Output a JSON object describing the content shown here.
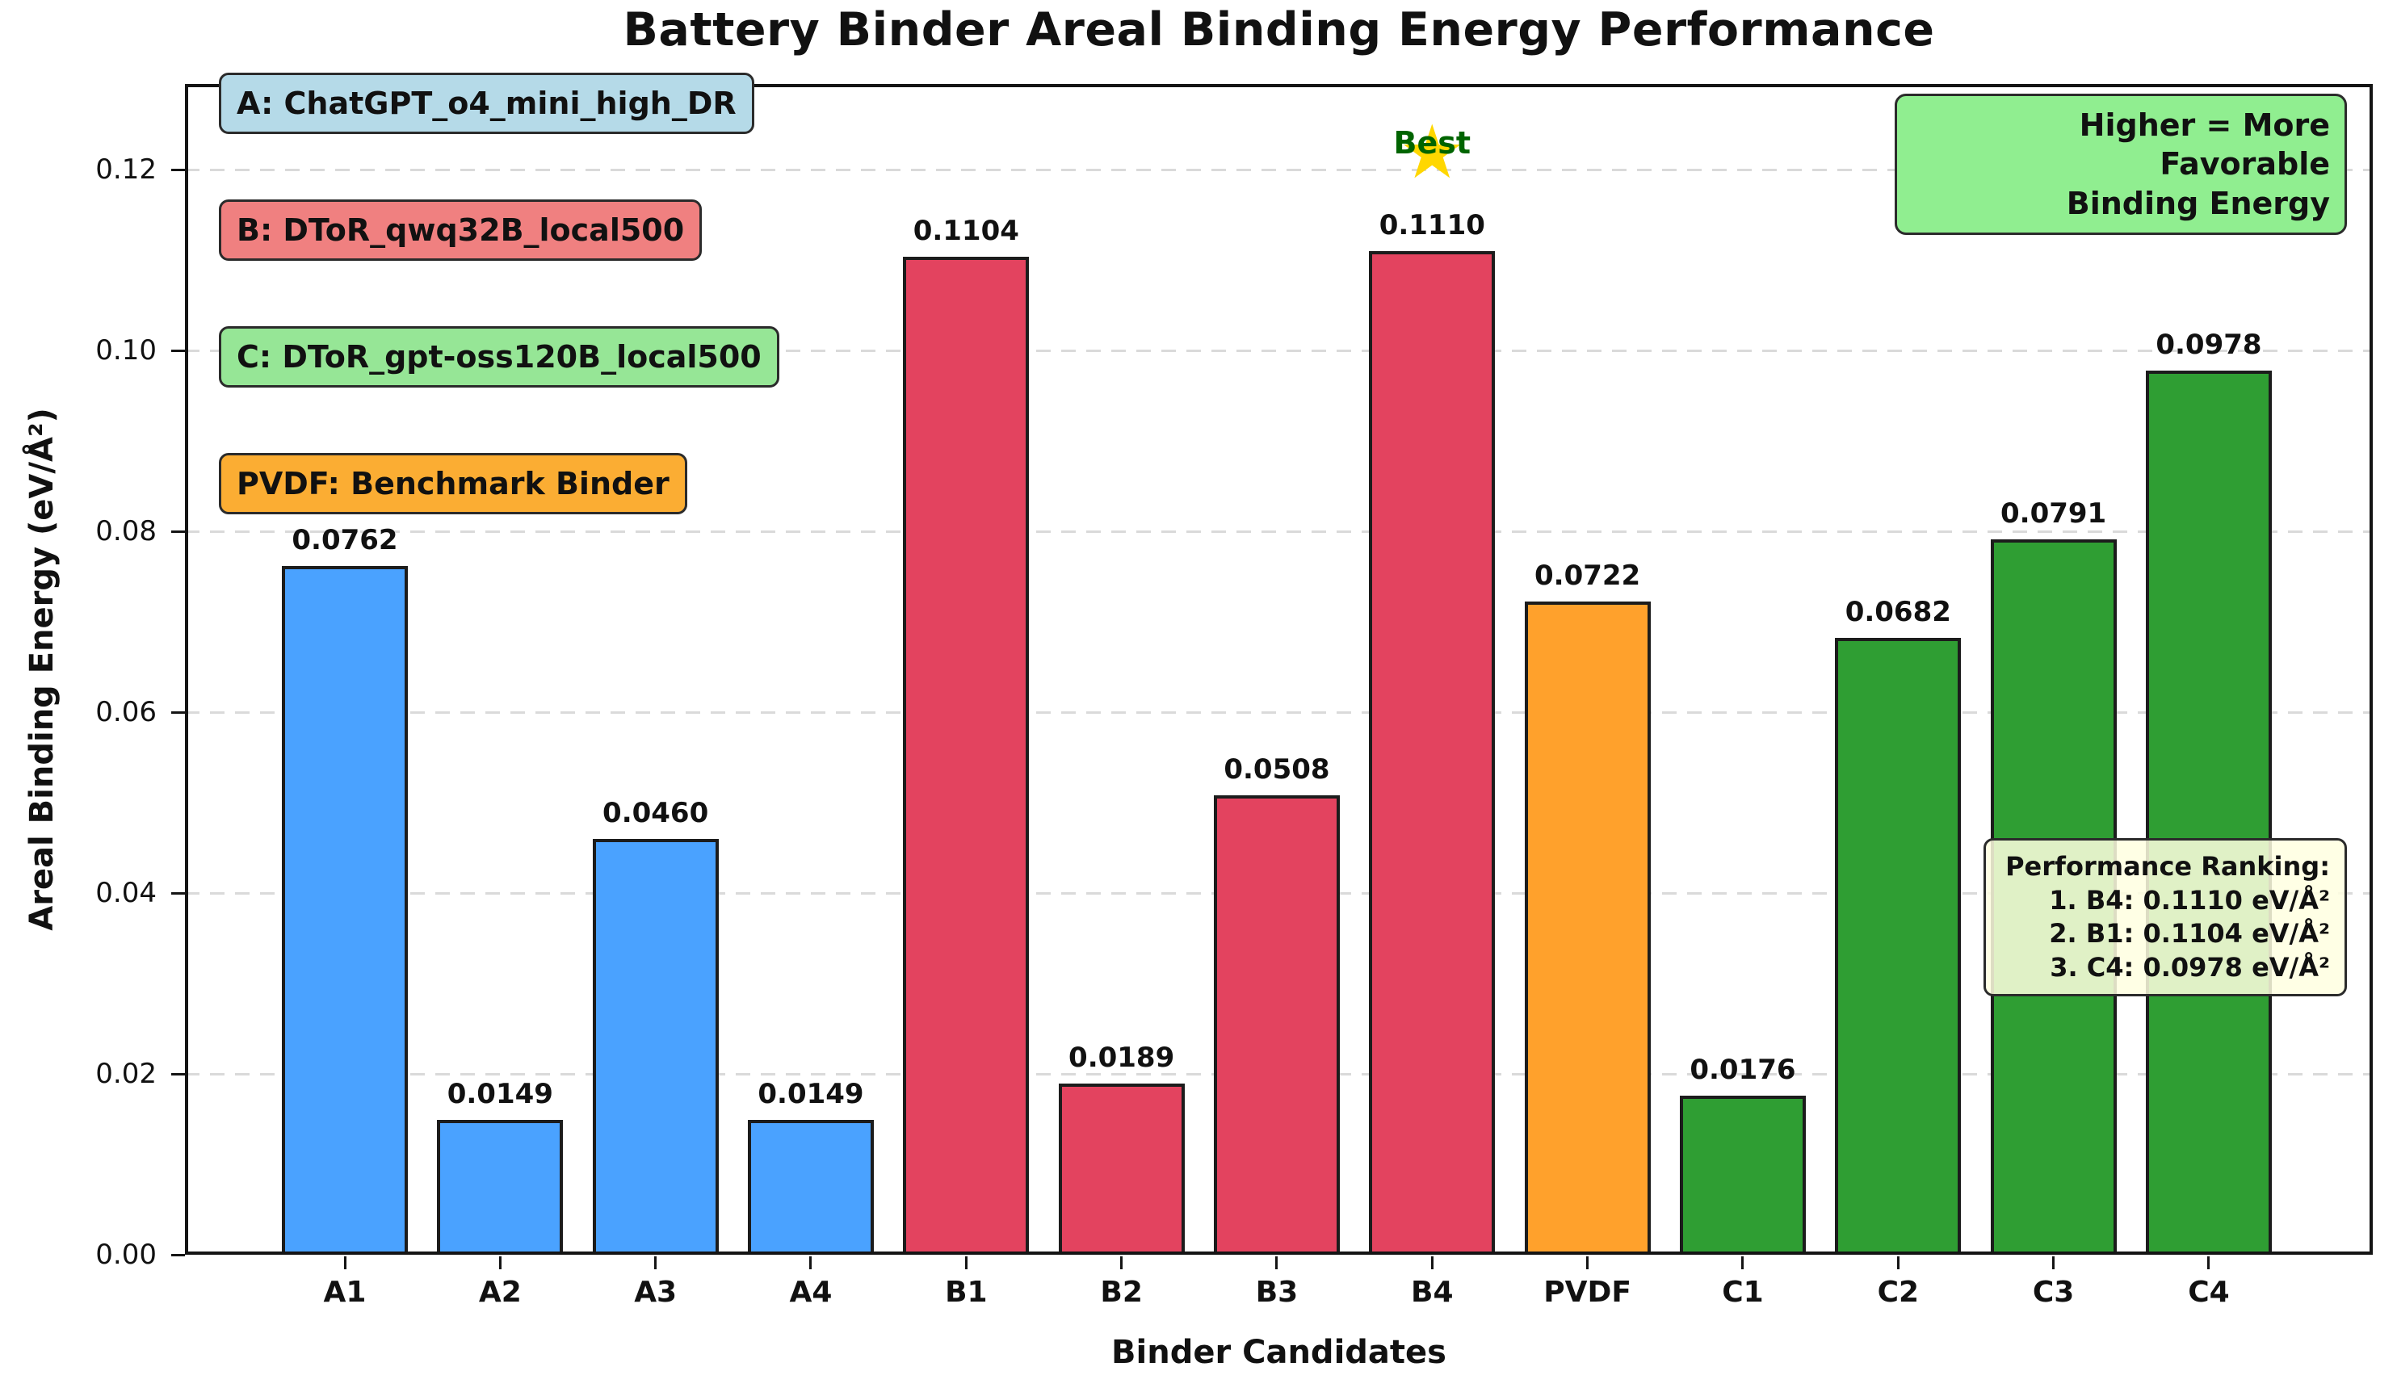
{
  "title": "Battery Binder Areal Binding Energy Performance",
  "chart_data": {
    "type": "bar",
    "title": "Battery Binder Areal Binding Energy Performance",
    "xlabel": "Binder Candidates",
    "ylabel": "Areal Binding Energy (eV/Å²)",
    "categories": [
      "A1",
      "A2",
      "A3",
      "A4",
      "B1",
      "B2",
      "B3",
      "B4",
      "PVDF",
      "C1",
      "C2",
      "C3",
      "C4"
    ],
    "values": [
      0.0762,
      0.0149,
      0.046,
      0.0149,
      0.1104,
      0.0189,
      0.0508,
      0.111,
      0.0722,
      0.0176,
      0.0682,
      0.0791,
      0.0978
    ],
    "value_labels": [
      "0.0762",
      "0.0149",
      "0.0460",
      "0.0149",
      "0.1104",
      "0.0189",
      "0.0508",
      "0.1110",
      "0.0722",
      "0.0176",
      "0.0682",
      "0.0791",
      "0.0978"
    ],
    "groups": [
      "A",
      "A",
      "A",
      "A",
      "B",
      "B",
      "B",
      "B",
      "PVDF",
      "C",
      "C",
      "C",
      "C"
    ],
    "group_colors": {
      "A": "#4AA2FF",
      "B": "#E3435F",
      "PVDF": "#FFA12C",
      "C": "#2F9E33"
    },
    "bar_edge_color": "#1c1c1c",
    "ylim": [
      0,
      0.1295
    ],
    "yticks": [
      {
        "value": 0.0,
        "label": "0.00"
      },
      {
        "value": 0.02,
        "label": "0.02"
      },
      {
        "value": 0.04,
        "label": "0.04"
      },
      {
        "value": 0.06,
        "label": "0.06"
      },
      {
        "value": 0.08,
        "label": "0.08"
      },
      {
        "value": 0.1,
        "label": "0.10"
      },
      {
        "value": 0.12,
        "label": "0.12"
      }
    ],
    "grid": "horizontal-dashed",
    "legend_position": "upper-left-inside",
    "best_annotation": {
      "category": "B4",
      "label": "Best",
      "star_glyph": "★",
      "star_color": "#FFD700",
      "text_color": "#006400"
    }
  },
  "legend": {
    "items": [
      {
        "label": "A: ChatGPT_o4_mini_high_DR",
        "bg": "#B5DAE8"
      },
      {
        "label": "B: DToR_qwq32B_local500",
        "bg": "#F08080"
      },
      {
        "label": "C: DToR_gpt-oss120B_local500",
        "bg": "#96E696"
      },
      {
        "label": "PVDF: Benchmark Binder",
        "bg": "#FBAD33"
      }
    ]
  },
  "note_box": {
    "lines": [
      "Higher = More Favorable",
      "Binding Energy"
    ],
    "bg": "#90EE90"
  },
  "ranking_box": {
    "title": "Performance Ranking:",
    "lines": [
      "1. B4: 0.1110 eV/Å²",
      "2. B1: 0.1104 eV/Å²",
      "3. C4: 0.0978 eV/Å²"
    ],
    "bg": "rgba(255,255,224,0.85)"
  }
}
